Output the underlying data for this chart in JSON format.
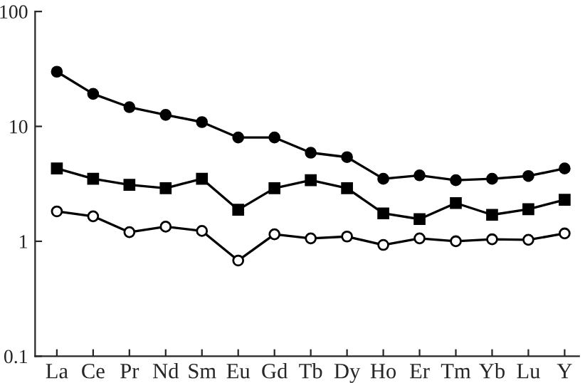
{
  "chart_data": {
    "type": "line",
    "categories": [
      "La",
      "Ce",
      "Pr",
      "Nd",
      "Sm",
      "Eu",
      "Gd",
      "Tb",
      "Dy",
      "Ho",
      "Er",
      "Tm",
      "Yb",
      "Lu",
      "Y"
    ],
    "log": true,
    "ylim": [
      0.1,
      100
    ],
    "yticks": [
      0.1,
      1,
      10,
      100
    ],
    "grid": false,
    "legend": false,
    "line_style": "solid",
    "series": [
      {
        "color": "#000000",
        "marker": "circle",
        "values": [
          29.9,
          19.2,
          14.7,
          12.6,
          10.9,
          8.0,
          8.0,
          5.9,
          5.4,
          3.5,
          3.75,
          3.4,
          3.5,
          3.7,
          4.3
        ]
      },
      {
        "color": "#000000",
        "marker": "square",
        "values": [
          4.3,
          3.5,
          3.1,
          2.9,
          3.5,
          1.88,
          2.9,
          3.4,
          2.9,
          1.75,
          1.56,
          2.15,
          1.7,
          1.9,
          2.3
        ]
      },
      {
        "color": "#000000",
        "marker": "open circle",
        "values": [
          1.82,
          1.65,
          1.2,
          1.34,
          1.23,
          0.68,
          1.15,
          1.06,
          1.1,
          0.93,
          1.06,
          1.0,
          1.04,
          1.03,
          1.17
        ]
      }
    ]
  }
}
